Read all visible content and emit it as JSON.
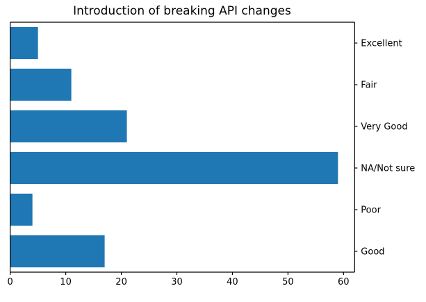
{
  "chart_data": {
    "type": "bar",
    "orientation": "horizontal",
    "title": "Introduction of breaking API changes",
    "categories": [
      "Excellent",
      "Fair",
      "Very Good",
      "NA/Not sure",
      "Poor",
      "Good"
    ],
    "values": [
      5,
      11,
      21,
      59,
      4,
      17
    ],
    "xlabel": "",
    "ylabel": "",
    "xticks": [
      0,
      10,
      20,
      30,
      40,
      50,
      60
    ],
    "xlim": [
      0,
      62
    ],
    "grid": false,
    "legend": null,
    "y_label_side": "right",
    "bar_color": "#1f77b4",
    "spine_color": "#000000",
    "text_color": "#000000",
    "background_color": "#ffffff"
  }
}
